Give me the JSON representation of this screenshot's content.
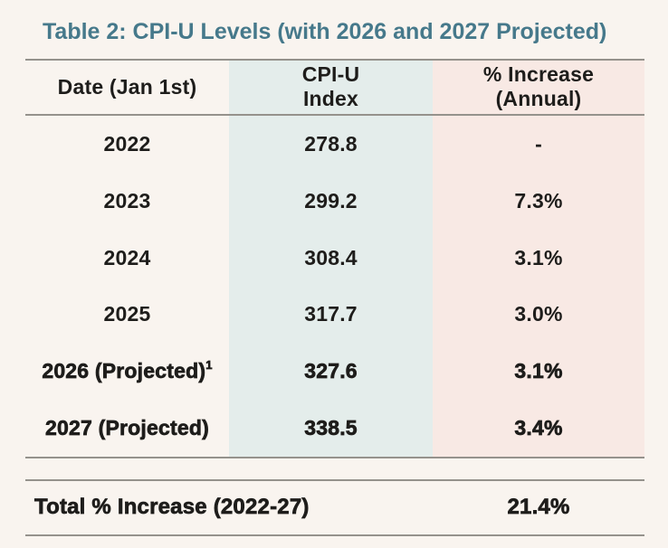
{
  "title": "Table 2: CPI-U Levels (with 2026 and 2027 Projected)",
  "table": {
    "headers": [
      {
        "line1": "Date (Jan 1st)",
        "line2": ""
      },
      {
        "line1": "CPI-U",
        "line2": "Index"
      },
      {
        "line1": "% Increase",
        "line2": "(Annual)"
      }
    ],
    "rows": [
      {
        "date": "2022",
        "cpi": "278.8",
        "pct": "-"
      },
      {
        "date": "2023",
        "cpi": "299.2",
        "pct": "7.3%"
      },
      {
        "date": "2024",
        "cpi": "308.4",
        "pct": "3.1%"
      },
      {
        "date": "2025",
        "cpi": "317.7",
        "pct": "3.0%"
      },
      {
        "date": "2026 (Projected)",
        "sup": "1",
        "cpi": "327.6",
        "pct": "3.1%"
      },
      {
        "date": "2027 (Projected)",
        "cpi": "338.5",
        "pct": "3.4%"
      }
    ],
    "footer": {
      "label": "Total % Increase (2022-27)",
      "value": "21.4%"
    }
  },
  "colors": {
    "background": "#f9f4ef",
    "accent_teal": "#46798b",
    "band_teal": "#e4edeb",
    "band_pink": "#f8e9e4",
    "rule": "#95928c",
    "text": "#1e1d1b"
  },
  "chart_data": {
    "type": "table",
    "title": "Table 2: CPI-U Levels (with 2026 and 2027 Projected)",
    "columns": [
      "Date (Jan 1st)",
      "CPI-U Index",
      "% Increase (Annual)"
    ],
    "rows": [
      [
        "2022",
        278.8,
        "-"
      ],
      [
        "2023",
        299.2,
        "7.3%"
      ],
      [
        "2024",
        308.4,
        "3.1%"
      ],
      [
        "2025",
        317.7,
        "3.0%"
      ],
      [
        "2026 (Projected)",
        327.6,
        "3.1%"
      ],
      [
        "2027 (Projected)",
        338.5,
        "3.4%"
      ]
    ],
    "projected_rows": [
      "2026 (Projected)",
      "2027 (Projected)"
    ],
    "footnote_marker_on": "2026 (Projected)",
    "footer": {
      "label": "Total % Increase (2022-27)",
      "value": "21.4%"
    },
    "cpi_values": [
      278.8,
      299.2,
      308.4,
      317.7,
      327.6,
      338.5
    ],
    "pct_increase_values": [
      null,
      7.3,
      3.1,
      3.0,
      3.1,
      3.4
    ],
    "total_pct_increase": 21.4
  }
}
